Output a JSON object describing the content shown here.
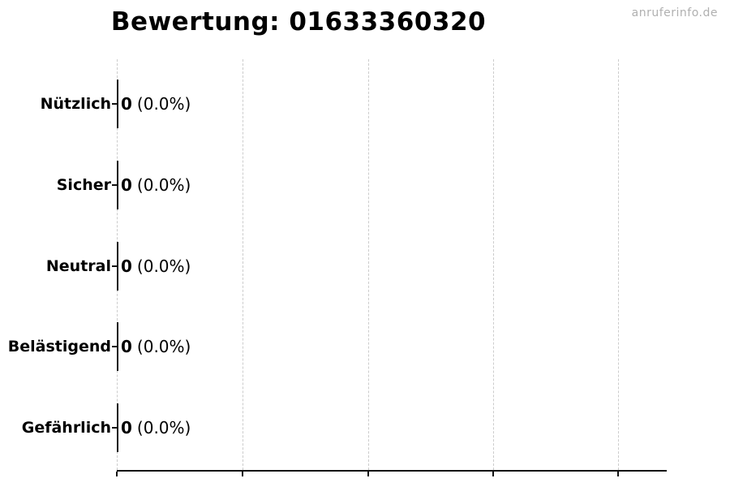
{
  "title": "Bewertung: 01633360320",
  "watermark": "anruferinfo.de",
  "rows": [
    {
      "label": "Nützlich",
      "value": "0",
      "percent": "(0.0%)"
    },
    {
      "label": "Sicher",
      "value": "0",
      "percent": "(0.0%)"
    },
    {
      "label": "Neutral",
      "value": "0",
      "percent": "(0.0%)"
    },
    {
      "label": "Belästigend",
      "value": "0",
      "percent": "(0.0%)"
    },
    {
      "label": "Gefährlich",
      "value": "0",
      "percent": "(0.0%)"
    }
  ],
  "chart_data": {
    "type": "bar",
    "orientation": "horizontal",
    "title": "Bewertung: 01633360320",
    "categories": [
      "Nützlich",
      "Sicher",
      "Neutral",
      "Belästigend",
      "Gefährlich"
    ],
    "values": [
      0,
      0,
      0,
      0,
      0
    ],
    "percentages": [
      0.0,
      0.0,
      0.0,
      0.0,
      0.0
    ],
    "bar_labels": [
      "0 (0.0%)",
      "0 (0.0%)",
      "0 (0.0%)",
      "0 (0.0%)",
      "0 (0.0%)"
    ],
    "xlabel": "",
    "ylabel": "",
    "x_tick_labels_visible": false,
    "x_gridline_count": 5,
    "grid": "vertical-dashed",
    "legend": "none",
    "watermark": "anruferinfo.de"
  },
  "colors": {
    "background": "#ffffff",
    "text": "#000000",
    "axis": "#111111",
    "grid": "#cccccc",
    "watermark": "#b0b0b0"
  }
}
